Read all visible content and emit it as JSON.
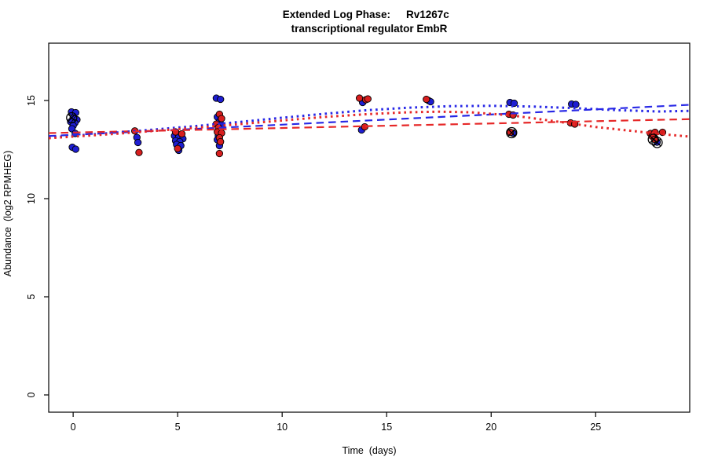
{
  "figure": {
    "title_left": "Extended Log Phase:",
    "title_right": "Rv1267c",
    "title_line2": "transcriptional regulator EmbR",
    "xlabel": "Time  (days)",
    "ylabel": "Abundance  (log2 RPMHEG)"
  },
  "chart_data": {
    "type": "scatter",
    "title": "Extended Log Phase:      Rv1267c\ntranscriptional regulator EmbR",
    "xlabel": "Time (days)",
    "ylabel": "Abundance (log2 RPMHEG)",
    "xlim": [
      -1.17,
      29.5
    ],
    "ylim": [
      -0.88,
      17.92
    ],
    "x_ticks": [
      0,
      5,
      10,
      15,
      20,
      25
    ],
    "y_ticks": [
      0,
      5,
      10,
      15
    ],
    "grid": false,
    "legend_position": "none",
    "point_radius": 4.2,
    "series": [
      {
        "name": "blue-condition",
        "color": "#1e1ed2",
        "points": [
          [
            -0.08,
            14.42
          ],
          [
            0.12,
            14.38
          ],
          [
            0.0,
            14.1
          ],
          [
            0.18,
            14.02
          ],
          [
            -0.12,
            13.92
          ],
          [
            0.08,
            13.86
          ],
          [
            0.0,
            13.72
          ],
          [
            -0.06,
            13.56
          ],
          [
            0.1,
            13.32
          ],
          [
            -0.04,
            12.62
          ],
          [
            0.12,
            12.52
          ],
          [
            3.05,
            13.12
          ],
          [
            3.1,
            12.86
          ],
          [
            4.85,
            13.2
          ],
          [
            5.05,
            13.14
          ],
          [
            5.25,
            13.05
          ],
          [
            4.9,
            12.95
          ],
          [
            5.1,
            12.9
          ],
          [
            4.95,
            12.76
          ],
          [
            5.15,
            12.7
          ],
          [
            5.05,
            12.46
          ],
          [
            6.85,
            15.12
          ],
          [
            7.05,
            15.06
          ],
          [
            6.9,
            14.16
          ],
          [
            7.0,
            13.92
          ],
          [
            7.1,
            13.76
          ],
          [
            7.05,
            13.5
          ],
          [
            6.95,
            13.2
          ],
          [
            6.9,
            13.0
          ],
          [
            7.0,
            12.7
          ],
          [
            13.85,
            14.9
          ],
          [
            13.8,
            13.5
          ],
          [
            17.0,
            15.0
          ],
          [
            17.1,
            14.94
          ],
          [
            20.9,
            14.9
          ],
          [
            21.1,
            14.86
          ],
          [
            21.04,
            13.34
          ],
          [
            23.85,
            14.82
          ],
          [
            24.05,
            14.8
          ],
          [
            27.94,
            12.88
          ]
        ]
      },
      {
        "name": "red-condition",
        "color": "#d81e1e",
        "points": [
          [
            2.95,
            13.45
          ],
          [
            3.15,
            12.35
          ],
          [
            4.9,
            13.4
          ],
          [
            5.2,
            13.3
          ],
          [
            5.0,
            12.55
          ],
          [
            7.0,
            14.3
          ],
          [
            7.1,
            14.08
          ],
          [
            6.85,
            13.8
          ],
          [
            6.95,
            13.62
          ],
          [
            6.9,
            13.4
          ],
          [
            7.1,
            13.34
          ],
          [
            7.0,
            13.1
          ],
          [
            7.05,
            12.9
          ],
          [
            7.0,
            12.3
          ],
          [
            13.7,
            15.12
          ],
          [
            14.0,
            15.04
          ],
          [
            14.1,
            15.08
          ],
          [
            13.95,
            13.66
          ],
          [
            16.9,
            15.06
          ],
          [
            20.85,
            14.3
          ],
          [
            21.05,
            14.26
          ],
          [
            20.92,
            13.38
          ],
          [
            23.8,
            13.86
          ],
          [
            24.0,
            13.8
          ],
          [
            27.62,
            13.32
          ],
          [
            27.84,
            13.38
          ],
          [
            28.2,
            13.38
          ],
          [
            27.7,
            13.18
          ],
          [
            27.82,
            13.02
          ]
        ]
      }
    ],
    "outlier_markers": {
      "symbol": "circle-x",
      "color": "#000000",
      "points": [
        [
          -0.07,
          14.12
        ],
        [
          20.98,
          13.36
        ],
        [
          27.76,
          13.02
        ],
        [
          27.94,
          12.86
        ]
      ]
    },
    "trend_lines": [
      {
        "name": "blue-dashed-fit",
        "color": "#2828e6",
        "style": "dashed",
        "width": 2.2,
        "points": [
          [
            -1.17,
            13.19
          ],
          [
            29.5,
            14.78
          ]
        ]
      },
      {
        "name": "red-dashed-fit",
        "color": "#e62828",
        "style": "dashed",
        "width": 2.2,
        "points": [
          [
            -1.17,
            13.34
          ],
          [
            29.5,
            14.05
          ]
        ]
      },
      {
        "name": "blue-dotted-fit",
        "color": "#2828e6",
        "style": "dotted",
        "width": 3,
        "points": [
          [
            -1.17,
            13.12
          ],
          [
            0,
            13.2
          ],
          [
            2,
            13.36
          ],
          [
            4,
            13.53
          ],
          [
            6,
            13.71
          ],
          [
            8,
            13.91
          ],
          [
            10,
            14.12
          ],
          [
            12,
            14.32
          ],
          [
            14,
            14.5
          ],
          [
            16,
            14.63
          ],
          [
            18,
            14.71
          ],
          [
            20,
            14.73
          ],
          [
            22,
            14.69
          ],
          [
            24,
            14.61
          ],
          [
            26,
            14.51
          ],
          [
            28,
            14.44
          ],
          [
            29.5,
            14.47
          ]
        ]
      },
      {
        "name": "red-dotted-fit",
        "color": "#e62828",
        "style": "dotted",
        "width": 3,
        "points": [
          [
            -1.17,
            13.08
          ],
          [
            0,
            13.16
          ],
          [
            2,
            13.3
          ],
          [
            4,
            13.46
          ],
          [
            6,
            13.62
          ],
          [
            8,
            13.8
          ],
          [
            10,
            13.98
          ],
          [
            12,
            14.16
          ],
          [
            14,
            14.3
          ],
          [
            16,
            14.4
          ],
          [
            17.5,
            14.43
          ],
          [
            19,
            14.4
          ],
          [
            21,
            14.24
          ],
          [
            23,
            13.95
          ],
          [
            25,
            13.65
          ],
          [
            27,
            13.42
          ],
          [
            28,
            13.3
          ],
          [
            29.5,
            13.16
          ]
        ]
      }
    ]
  }
}
